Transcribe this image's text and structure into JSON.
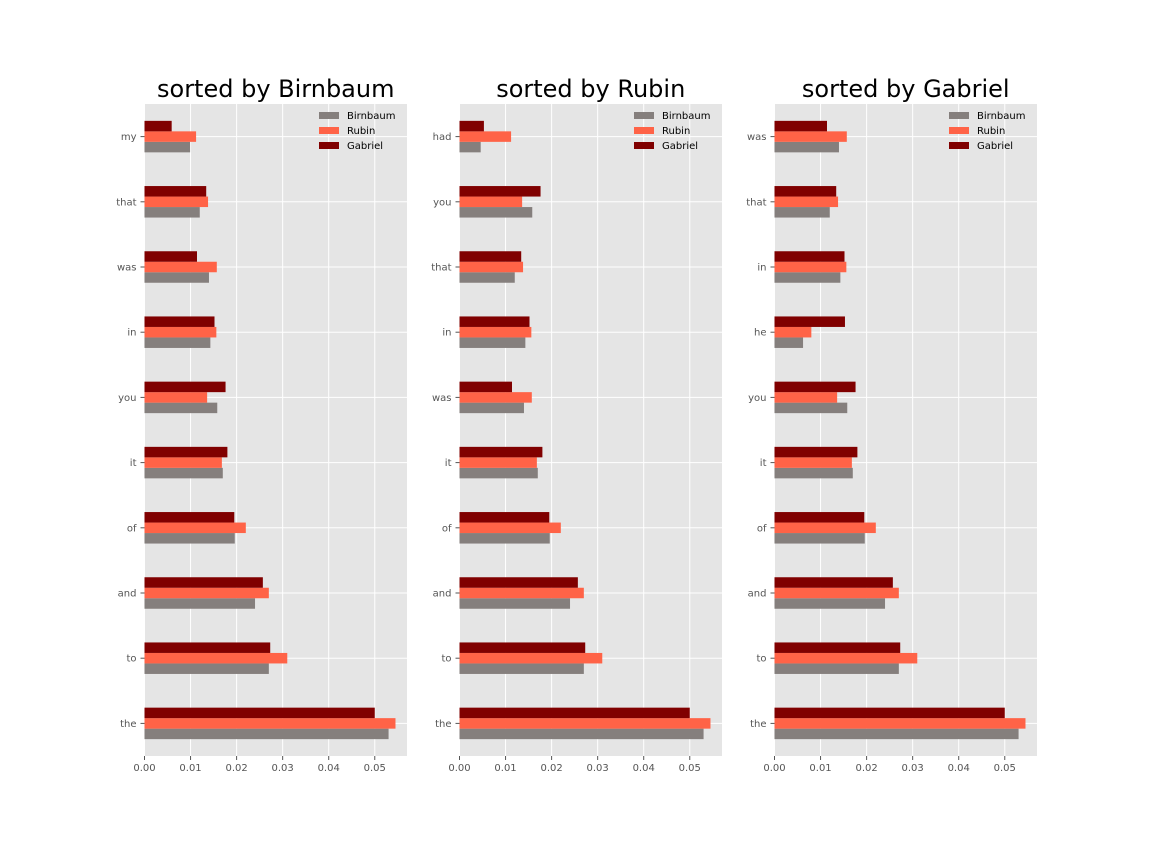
{
  "legend_position": "top-right",
  "series_colors": {
    "Birnbaum": "#857f7d",
    "Rubin": "#ff6347",
    "Gabriel": "#800000"
  },
  "chart_data": [
    {
      "type": "bar",
      "orientation": "horizontal",
      "title": "sorted by Birnbaum",
      "categories": [
        "the",
        "to",
        "and",
        "of",
        "it",
        "you",
        "in",
        "was",
        "that",
        "my"
      ],
      "series": [
        {
          "name": "Birnbaum",
          "values": [
            0.053,
            0.027,
            0.024,
            0.0196,
            0.017,
            0.0158,
            0.0143,
            0.014,
            0.012,
            0.0099
          ]
        },
        {
          "name": "Rubin",
          "values": [
            0.0545,
            0.031,
            0.027,
            0.022,
            0.0168,
            0.0136,
            0.0156,
            0.0157,
            0.0138,
            0.0112
          ]
        },
        {
          "name": "Gabriel",
          "values": [
            0.05,
            0.0273,
            0.0257,
            0.0195,
            0.018,
            0.0176,
            0.0152,
            0.0114,
            0.0134,
            0.0059
          ]
        }
      ],
      "xlim": [
        0,
        0.057
      ],
      "xticks": [
        "0.00",
        "0.01",
        "0.02",
        "0.03",
        "0.04",
        "0.05"
      ],
      "grid": true
    },
    {
      "type": "bar",
      "orientation": "horizontal",
      "title": "sorted by Rubin",
      "categories": [
        "the",
        "to",
        "and",
        "of",
        "it",
        "was",
        "in",
        "that",
        "you",
        "had"
      ],
      "series": [
        {
          "name": "Birnbaum",
          "values": [
            0.053,
            0.027,
            0.024,
            0.0196,
            0.017,
            0.014,
            0.0143,
            0.012,
            0.0158,
            0.0046
          ]
        },
        {
          "name": "Rubin",
          "values": [
            0.0545,
            0.031,
            0.027,
            0.022,
            0.0168,
            0.0157,
            0.0156,
            0.0138,
            0.0136,
            0.0112
          ]
        },
        {
          "name": "Gabriel",
          "values": [
            0.05,
            0.0273,
            0.0257,
            0.0195,
            0.018,
            0.0114,
            0.0152,
            0.0134,
            0.0176,
            0.0053
          ]
        }
      ],
      "xlim": [
        0,
        0.057
      ],
      "xticks": [
        "0.00",
        "0.01",
        "0.02",
        "0.03",
        "0.04",
        "0.05"
      ],
      "grid": true
    },
    {
      "type": "bar",
      "orientation": "horizontal",
      "title": "sorted by Gabriel",
      "categories": [
        "the",
        "to",
        "and",
        "of",
        "it",
        "you",
        "he",
        "in",
        "that",
        "was"
      ],
      "series": [
        {
          "name": "Birnbaum",
          "values": [
            0.053,
            0.027,
            0.024,
            0.0196,
            0.017,
            0.0158,
            0.0062,
            0.0143,
            0.012,
            0.014
          ]
        },
        {
          "name": "Rubin",
          "values": [
            0.0545,
            0.031,
            0.027,
            0.022,
            0.0168,
            0.0136,
            0.008,
            0.0156,
            0.0138,
            0.0157
          ]
        },
        {
          "name": "Gabriel",
          "values": [
            0.05,
            0.0273,
            0.0257,
            0.0195,
            0.018,
            0.0176,
            0.0153,
            0.0152,
            0.0134,
            0.0114
          ]
        }
      ],
      "xlim": [
        0,
        0.057
      ],
      "xticks": [
        "0.00",
        "0.01",
        "0.02",
        "0.03",
        "0.04",
        "0.05"
      ],
      "grid": true
    }
  ]
}
